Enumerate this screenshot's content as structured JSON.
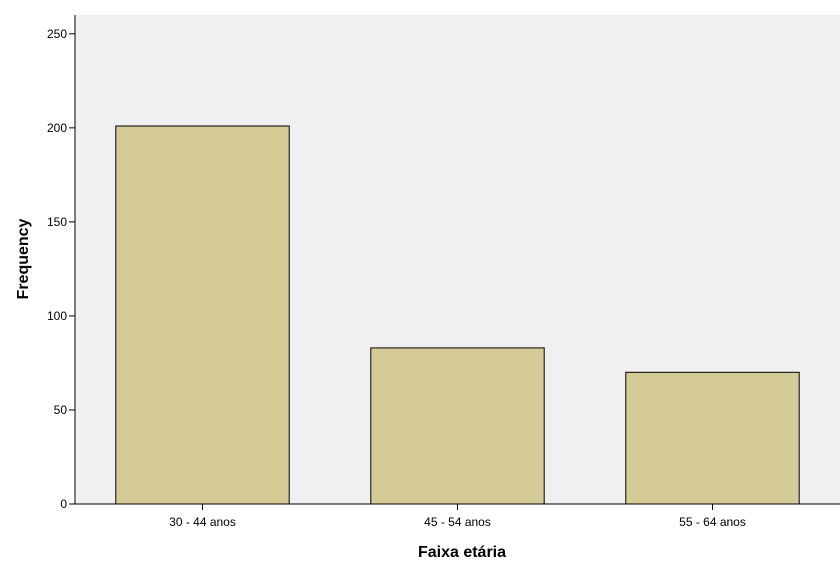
{
  "chart_data": {
    "type": "bar",
    "categories": [
      "30 - 44 anos",
      "45 - 54 anos",
      "55 - 64 anos"
    ],
    "values": [
      201,
      83,
      70
    ],
    "title": "",
    "xlabel": "Faixa etária",
    "ylabel": "Frequency",
    "ylim": [
      0,
      260
    ],
    "yticks": [
      0,
      50,
      100,
      150,
      200,
      250
    ],
    "grid": false,
    "legend": "none",
    "colors": {
      "bar_fill": "#d5cb97",
      "bar_stroke": "#000000",
      "plot_background": "#f0f0f0",
      "axis": "#000000"
    }
  }
}
